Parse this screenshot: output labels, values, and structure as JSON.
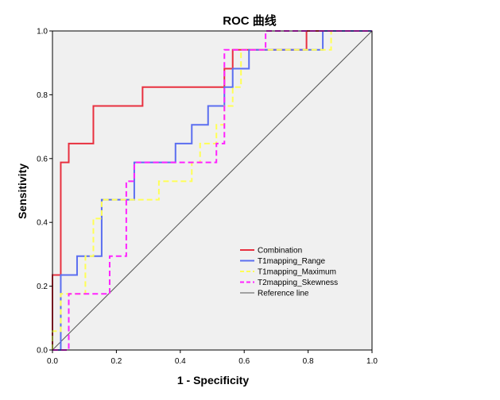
{
  "chart_data": {
    "type": "line",
    "title": "ROC 曲线",
    "xlabel": "1 - Specificity",
    "ylabel": "Sensitivity",
    "xlim": [
      0,
      1
    ],
    "ylim": [
      0,
      1
    ],
    "x_ticks": [
      "0.0",
      "0.2",
      "0.4",
      "0.6",
      "0.8",
      "1.0"
    ],
    "y_ticks": [
      "0.0",
      "0.2",
      "0.4",
      "0.6",
      "0.8",
      "1.0"
    ],
    "legend_position": "lower-right inside plot",
    "plot_background": "#f0f0f0",
    "series": [
      {
        "name": "Combination",
        "color": "#e8303f",
        "dash": "solid",
        "points": [
          [
            0,
            0
          ],
          [
            0,
            0.235
          ],
          [
            0.026,
            0.235
          ],
          [
            0.026,
            0.588
          ],
          [
            0.051,
            0.588
          ],
          [
            0.051,
            0.647
          ],
          [
            0.128,
            0.647
          ],
          [
            0.128,
            0.765
          ],
          [
            0.282,
            0.765
          ],
          [
            0.282,
            0.824
          ],
          [
            0.538,
            0.824
          ],
          [
            0.538,
            0.882
          ],
          [
            0.564,
            0.882
          ],
          [
            0.564,
            0.941
          ],
          [
            0.795,
            0.941
          ],
          [
            0.795,
            1.0
          ],
          [
            1,
            1
          ]
        ]
      },
      {
        "name": "T1mapping_Range",
        "color": "#5b6ef0",
        "dash": "solid",
        "points": [
          [
            0,
            0
          ],
          [
            0.026,
            0
          ],
          [
            0.026,
            0.235
          ],
          [
            0.077,
            0.235
          ],
          [
            0.077,
            0.294
          ],
          [
            0.154,
            0.294
          ],
          [
            0.154,
            0.471
          ],
          [
            0.256,
            0.471
          ],
          [
            0.256,
            0.588
          ],
          [
            0.385,
            0.588
          ],
          [
            0.385,
            0.647
          ],
          [
            0.436,
            0.647
          ],
          [
            0.436,
            0.706
          ],
          [
            0.487,
            0.706
          ],
          [
            0.487,
            0.765
          ],
          [
            0.538,
            0.765
          ],
          [
            0.538,
            0.824
          ],
          [
            0.564,
            0.824
          ],
          [
            0.564,
            0.882
          ],
          [
            0.615,
            0.882
          ],
          [
            0.615,
            0.941
          ],
          [
            0.846,
            0.941
          ],
          [
            0.846,
            1.0
          ],
          [
            1,
            1
          ]
        ]
      },
      {
        "name": "T1mapping_Maximum",
        "color": "#ffff55",
        "dash": "dashed",
        "points": [
          [
            0,
            0
          ],
          [
            0,
            0.059
          ],
          [
            0.026,
            0.059
          ],
          [
            0.026,
            0.176
          ],
          [
            0.103,
            0.176
          ],
          [
            0.103,
            0.294
          ],
          [
            0.128,
            0.294
          ],
          [
            0.128,
            0.412
          ],
          [
            0.154,
            0.412
          ],
          [
            0.154,
            0.471
          ],
          [
            0.333,
            0.471
          ],
          [
            0.333,
            0.529
          ],
          [
            0.436,
            0.529
          ],
          [
            0.436,
            0.588
          ],
          [
            0.462,
            0.588
          ],
          [
            0.462,
            0.647
          ],
          [
            0.513,
            0.647
          ],
          [
            0.513,
            0.706
          ],
          [
            0.538,
            0.706
          ],
          [
            0.538,
            0.765
          ],
          [
            0.564,
            0.765
          ],
          [
            0.564,
            0.824
          ],
          [
            0.59,
            0.824
          ],
          [
            0.59,
            0.941
          ],
          [
            0.872,
            0.941
          ],
          [
            0.872,
            1.0
          ],
          [
            1,
            1
          ]
        ]
      },
      {
        "name": "T2mapping_Skewness",
        "color": "#ff22ff",
        "dash": "dashed",
        "points": [
          [
            0,
            0
          ],
          [
            0.051,
            0
          ],
          [
            0.051,
            0.176
          ],
          [
            0.179,
            0.176
          ],
          [
            0.179,
            0.294
          ],
          [
            0.231,
            0.294
          ],
          [
            0.231,
            0.529
          ],
          [
            0.256,
            0.529
          ],
          [
            0.256,
            0.588
          ],
          [
            0.513,
            0.588
          ],
          [
            0.513,
            0.647
          ],
          [
            0.538,
            0.647
          ],
          [
            0.538,
            0.941
          ],
          [
            0.667,
            0.941
          ],
          [
            0.667,
            1.0
          ],
          [
            1,
            1
          ]
        ]
      },
      {
        "name": "Reference line",
        "color": "#555555",
        "dash": "solid",
        "points": [
          [
            0,
            0
          ],
          [
            1,
            1
          ]
        ]
      }
    ]
  }
}
